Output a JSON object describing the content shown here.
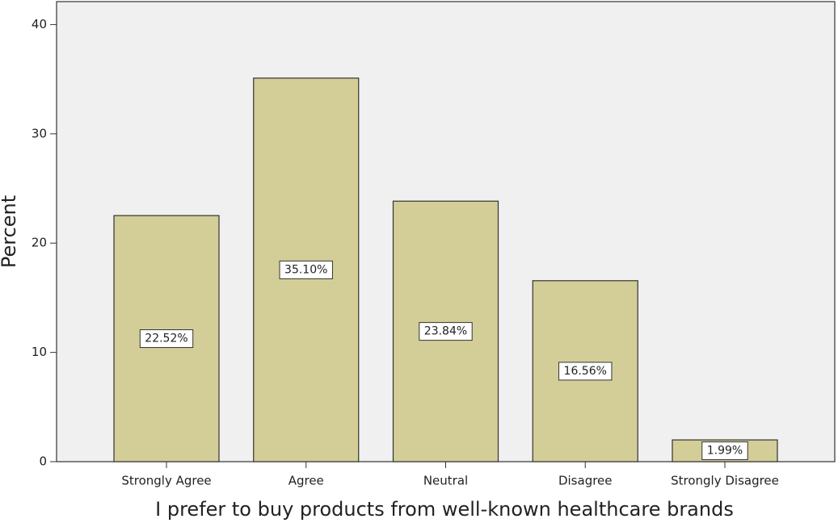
{
  "chart_data": {
    "type": "bar",
    "x_label": "I prefer to buy products from well-known healthcare brands",
    "y_label": "Percent",
    "categories": [
      "Strongly Agree",
      "Agree",
      "Neutral",
      "Disagree",
      "Strongly Disagree"
    ],
    "values": [
      22.52,
      35.1,
      23.84,
      16.56,
      1.99
    ],
    "value_labels": [
      "22.52%",
      "35.10%",
      "23.84%",
      "16.56%",
      "1.99%"
    ],
    "color": "#d3ce97",
    "ylim": [
      0,
      42.1
    ],
    "yticks": [
      0,
      10,
      20,
      30,
      40
    ],
    "grid": false
  }
}
